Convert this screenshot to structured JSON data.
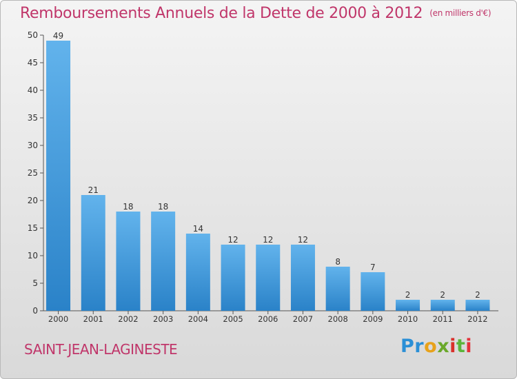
{
  "header": {
    "title": "Remboursements Annuels de la Dette de 2000 à 2012",
    "subtitle": "(en milliers d'€)"
  },
  "footer": {
    "commune": "SAINT-JEAN-LAGINESTE",
    "brand": [
      "P",
      "r",
      "o",
      "x",
      "i",
      "t",
      "i"
    ],
    "brand_colors": [
      "#2a8fd6",
      "#2a8fd6",
      "#e8a21a",
      "#6aa82a",
      "#d9302b",
      "#5bb53a",
      "#e3323a"
    ]
  },
  "chart_data": {
    "type": "bar",
    "title": "Remboursements Annuels de la Dette de 2000 à 2012",
    "subtitle": "(en milliers d'€)",
    "categories": [
      "2000",
      "2001",
      "2002",
      "2003",
      "2004",
      "2005",
      "2006",
      "2007",
      "2008",
      "2009",
      "2010",
      "2011",
      "2012"
    ],
    "values": [
      49,
      21,
      18,
      18,
      14,
      12,
      12,
      12,
      8,
      7,
      2,
      2,
      2
    ],
    "ylim": [
      0,
      50
    ],
    "yticks": [
      0,
      5,
      10,
      15,
      20,
      25,
      30,
      35,
      40,
      45,
      50
    ],
    "grid": false,
    "bar_color_top": "#62b3ec",
    "bar_color_bottom": "#2a82c8"
  }
}
